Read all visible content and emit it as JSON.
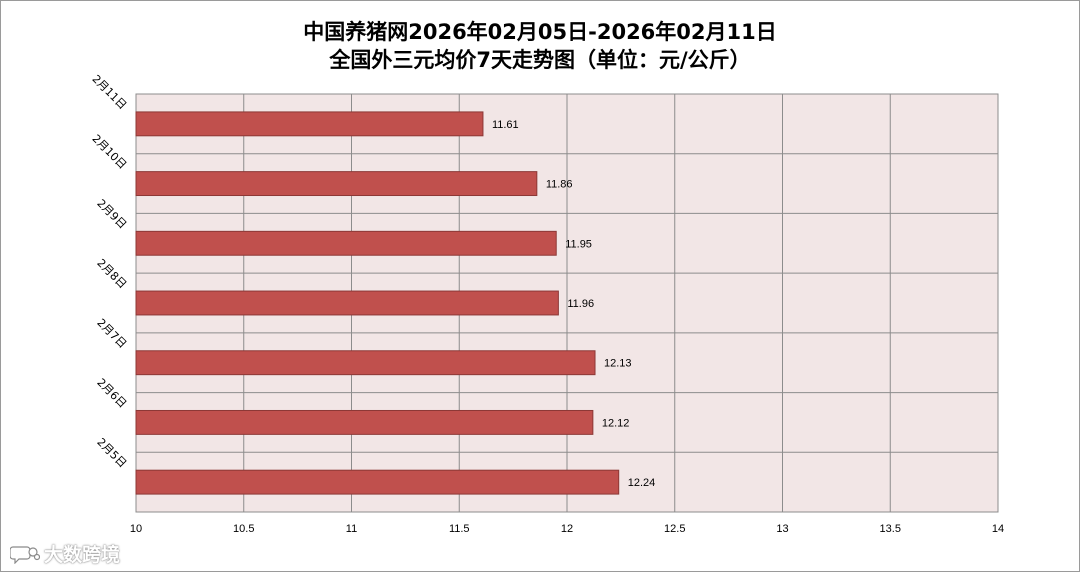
{
  "chart_data": {
    "type": "bar",
    "orientation": "horizontal",
    "title_line1": "中国养猪网2026年02月05日-2026年02月11日",
    "title_line2": "全国外三元均价7天走势图（单位：元/公斤）",
    "categories": [
      "2月11日",
      "2月10日",
      "2月9日",
      "2月8日",
      "2月7日",
      "2月6日",
      "2月5日"
    ],
    "values": [
      11.61,
      11.86,
      11.95,
      11.96,
      12.13,
      12.12,
      12.24
    ],
    "data_labels": [
      "11.61",
      "11.86",
      "11.95",
      "11.96",
      "12.13",
      "12.12",
      "12.24"
    ],
    "x_ticks": [
      "10",
      "10.5",
      "11",
      "11.5",
      "12",
      "12.5",
      "13",
      "13.5",
      "14"
    ],
    "xlim": [
      10,
      14
    ],
    "grid": true,
    "legend": "none",
    "bar_color": "#c0504d",
    "bar_border_color": "#8c3836",
    "plot_background": "#f2e6e6",
    "gridline_color": "#8c8c8c"
  },
  "watermark": {
    "text": "大数跨境",
    "icon": "speech-bubble-logo-icon"
  }
}
